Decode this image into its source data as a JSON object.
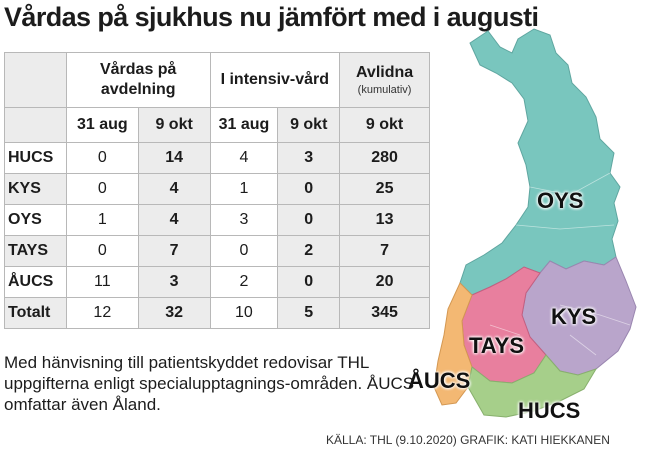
{
  "title": "Vårdas på sjukhus nu jämfört med i augusti",
  "chart_data": {
    "type": "table",
    "columns": {
      "group1": "Vårdas på avdelning",
      "group2": "I intensiv-vård",
      "group3": "Avlidna",
      "group3_sub": "(kumulativ)",
      "dates": [
        "31 aug",
        "9 okt",
        "31 aug",
        "9 okt",
        "9 okt"
      ]
    },
    "rows": [
      {
        "region": "HUCS",
        "ward_aug": "0",
        "ward_okt": "14",
        "icu_aug": "4",
        "icu_okt": "3",
        "deaths": "280"
      },
      {
        "region": "KYS",
        "ward_aug": "0",
        "ward_okt": "4",
        "icu_aug": "1",
        "icu_okt": "0",
        "deaths": "25"
      },
      {
        "region": "OYS",
        "ward_aug": "1",
        "ward_okt": "4",
        "icu_aug": "3",
        "icu_okt": "0",
        "deaths": "13"
      },
      {
        "region": "TAYS",
        "ward_aug": "0",
        "ward_okt": "7",
        "icu_aug": "0",
        "icu_okt": "2",
        "deaths": "7"
      },
      {
        "region": "ÅUCS",
        "ward_aug": "11",
        "ward_okt": "3",
        "icu_aug": "2",
        "icu_okt": "0",
        "deaths": "20"
      },
      {
        "region": "Totalt",
        "ward_aug": "12",
        "ward_okt": "32",
        "icu_aug": "10",
        "icu_okt": "5",
        "deaths": "345"
      }
    ]
  },
  "map": {
    "labels": [
      "OYS",
      "KYS",
      "TAYS",
      "ÅUCS",
      "HUCS"
    ],
    "colors": {
      "OYS": "#79c6be",
      "KYS": "#b9a5cb",
      "TAYS": "#e87f9e",
      "ÅUCS": "#f3b873",
      "HUCS": "#a6cf8a"
    }
  },
  "note": "Med hänvisning till patientskyddet redovisar THL uppgifterna enligt specialupptagnings-områden. ÅUCS omfattar även Åland.",
  "source": "KÄLLA: THL (9.10.2020) GRAFIK: KATI HIEKKANEN"
}
